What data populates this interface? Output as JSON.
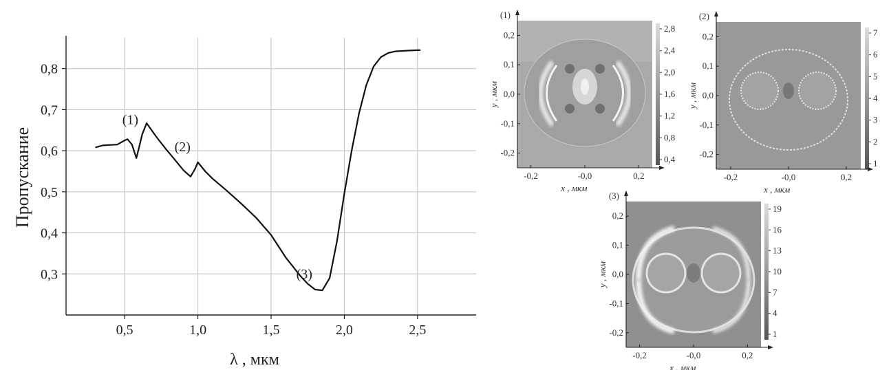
{
  "chart_data": [
    {
      "type": "line",
      "xlabel": "λ , мкм",
      "ylabel": "Пропускание",
      "xlim": [
        0.1,
        2.9
      ],
      "ylim": [
        0.2,
        0.9
      ],
      "x_ticks": [
        "0,5",
        "1,0",
        "1,5",
        "2,0",
        "2,5"
      ],
      "y_ticks": [
        "0,3",
        "0,4",
        "0,5",
        "0,6",
        "0,7",
        "0,8"
      ],
      "grid": true,
      "series": [
        {
          "x": [
            0.3,
            0.35,
            0.4,
            0.45,
            0.5,
            0.52,
            0.55,
            0.58,
            0.6,
            0.62,
            0.65,
            0.68,
            0.72,
            0.78,
            0.85,
            0.9,
            0.95,
            0.98,
            1.0,
            1.05,
            1.1,
            1.2,
            1.3,
            1.4,
            1.5,
            1.6,
            1.7,
            1.75,
            1.8,
            1.85,
            1.9,
            1.95,
            2.0,
            2.05,
            2.1,
            2.15,
            2.2,
            2.25,
            2.3,
            2.35,
            2.4,
            2.45,
            2.52
          ],
          "y": [
            0.608,
            0.613,
            0.614,
            0.615,
            0.625,
            0.628,
            0.615,
            0.582,
            0.61,
            0.64,
            0.667,
            0.652,
            0.632,
            0.605,
            0.575,
            0.553,
            0.537,
            0.555,
            0.572,
            0.55,
            0.532,
            0.502,
            0.47,
            0.436,
            0.395,
            0.34,
            0.295,
            0.276,
            0.262,
            0.26,
            0.29,
            0.38,
            0.495,
            0.6,
            0.69,
            0.76,
            0.805,
            0.828,
            0.838,
            0.842,
            0.843,
            0.844,
            0.845
          ]
        }
      ],
      "annotations": [
        {
          "text": "(1)",
          "x": 0.52,
          "y": 0.628
        },
        {
          "text": "(2)",
          "x": 0.98,
          "y": 0.572
        },
        {
          "text": "(3)",
          "x": 1.83,
          "y": 0.262
        }
      ]
    },
    {
      "type": "heatmap",
      "panel_label": "(1)",
      "xlabel": "x , мкм",
      "ylabel": "y , мкм",
      "x_ticks": [
        "-0,2",
        "-0,0",
        "0,2"
      ],
      "y_ticks": [
        "0,2",
        "0,1",
        "0,0",
        "-0,1",
        "-0,2"
      ],
      "colorbar_ticks": [
        "2,8",
        "2,4",
        "2,0",
        "1,6",
        "1,2",
        "0,8",
        "0,4"
      ]
    },
    {
      "type": "heatmap",
      "panel_label": "(2)",
      "xlabel": "x , мкм",
      "ylabel": "y , мкм",
      "x_ticks": [
        "-0,2",
        "-0,0",
        "0,2"
      ],
      "y_ticks": [
        "0,2",
        "0,1",
        "0,0",
        "-0,1",
        "-0,2"
      ],
      "colorbar_ticks": [
        "7",
        "6",
        "5",
        "4",
        "3",
        "2",
        "1"
      ]
    },
    {
      "type": "heatmap",
      "panel_label": "(3)",
      "xlabel": "x , мкм",
      "ylabel": "y , мкм",
      "x_ticks": [
        "-0,2",
        "-0,0",
        "0,2"
      ],
      "y_ticks": [
        "0,2",
        "0,1",
        "0,0",
        "-0,1",
        "-0,2"
      ],
      "colorbar_ticks": [
        "19",
        "16",
        "13",
        "10",
        "7",
        "4",
        "1"
      ]
    }
  ]
}
